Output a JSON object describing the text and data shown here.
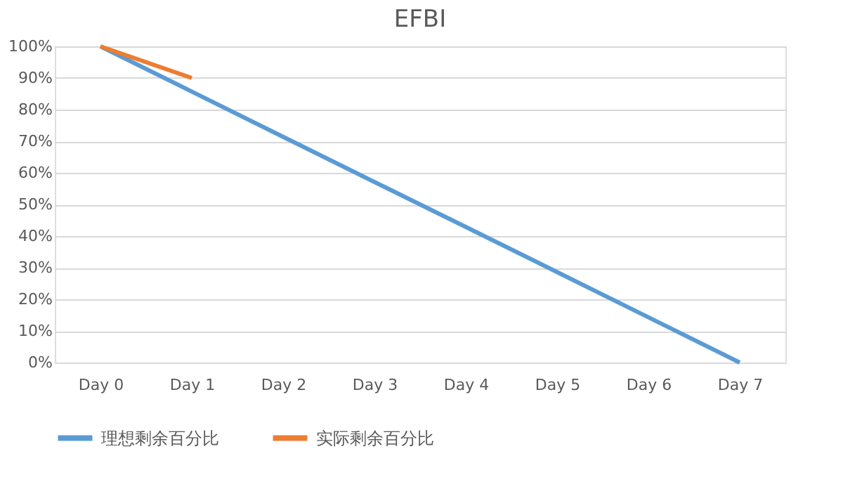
{
  "chart_data": {
    "type": "line",
    "title": "EFBI",
    "categories": [
      "Day 0",
      "Day 1",
      "Day 2",
      "Day 3",
      "Day 4",
      "Day 5",
      "Day 6",
      "Day 7"
    ],
    "series": [
      {
        "name": "理想剩余百分比",
        "color": "#5b9bd5",
        "values": [
          100,
          85.7,
          71.4,
          57.1,
          42.9,
          28.6,
          14.3,
          0
        ]
      },
      {
        "name": "实际剩余百分比",
        "color": "#ed7d31",
        "values": [
          100,
          90,
          null,
          null,
          null,
          null,
          null,
          null
        ]
      }
    ],
    "ylim": [
      0,
      100
    ],
    "yticks": [
      {
        "value": 0,
        "label": "0%"
      },
      {
        "value": 10,
        "label": "10%"
      },
      {
        "value": 20,
        "label": "20%"
      },
      {
        "value": 30,
        "label": "30%"
      },
      {
        "value": 40,
        "label": "40%"
      },
      {
        "value": 50,
        "label": "50%"
      },
      {
        "value": 60,
        "label": "60%"
      },
      {
        "value": 70,
        "label": "70%"
      },
      {
        "value": 80,
        "label": "80%"
      },
      {
        "value": 90,
        "label": "90%"
      },
      {
        "value": 100,
        "label": "100%"
      }
    ],
    "grid": "y",
    "legend": "bottom",
    "marker": "none",
    "line_style": "solid"
  }
}
